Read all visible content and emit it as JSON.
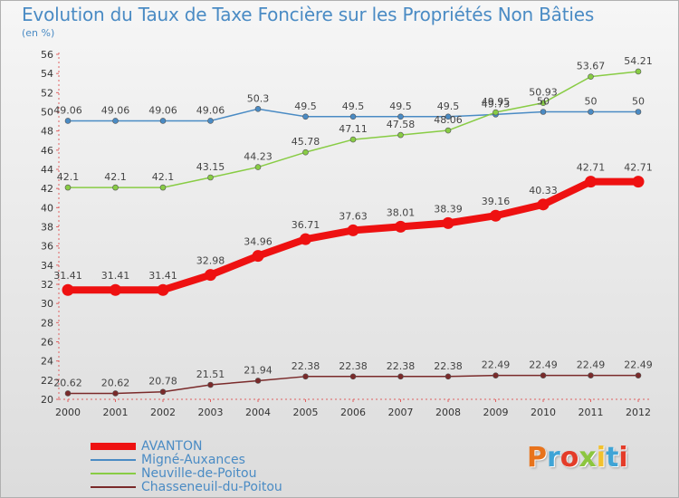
{
  "title": "Evolution du Taux de Taxe Foncière sur les Propriétés Non Bâties",
  "subtitle": "(en %)",
  "logo_text": "Proxiti",
  "logo_colors": [
    "#e8731c",
    "#3fa4d6",
    "#e43c29",
    "#8cc63f",
    "#f2c12e",
    "#3fa4d6",
    "#e43c29"
  ],
  "chart_data": {
    "type": "line",
    "x": [
      "2000",
      "2001",
      "2002",
      "2003",
      "2004",
      "2005",
      "2006",
      "2007",
      "2008",
      "2009",
      "2010",
      "2011",
      "2012"
    ],
    "ylim": [
      20,
      56
    ],
    "yticks": [
      "20",
      "22",
      "24",
      "26",
      "28",
      "30",
      "32",
      "34",
      "36",
      "38",
      "40",
      "42",
      "44",
      "46",
      "48",
      "50",
      "52",
      "54",
      "56"
    ],
    "grid": false,
    "legend_placement": "bottom-left",
    "series": [
      {
        "name": "AVANTON",
        "color": "#ee1111",
        "values": [
          31.41,
          31.41,
          31.41,
          32.98,
          34.96,
          36.71,
          37.63,
          38.01,
          38.39,
          39.16,
          40.33,
          42.71,
          42.71
        ],
        "labels": [
          "31.41",
          "31.41",
          "31.41",
          "32.98",
          "34.96",
          "36.71",
          "37.63",
          "38.01",
          "38.39",
          "39.16",
          "40.33",
          "42.71",
          "42.71"
        ]
      },
      {
        "name": "Migné-Auxances",
        "color": "#4a8bc4",
        "values": [
          49.06,
          49.06,
          49.06,
          49.06,
          50.3,
          49.5,
          49.5,
          49.5,
          49.5,
          49.73,
          50,
          50,
          50
        ],
        "labels": [
          "49.06",
          "49.06",
          "49.06",
          "49.06",
          "50.3",
          "49.5",
          "49.5",
          "49.5",
          "49.5",
          "49.73",
          "50",
          "50",
          "50"
        ]
      },
      {
        "name": "Neuville-de-Poitou",
        "color": "#88cc44",
        "values": [
          42.1,
          42.1,
          42.1,
          43.15,
          44.23,
          45.78,
          47.11,
          47.58,
          48.06,
          49.95,
          50.93,
          53.67,
          54.21
        ],
        "labels": [
          "42.1",
          "42.1",
          "42.1",
          "43.15",
          "44.23",
          "45.78",
          "47.11",
          "47.58",
          "48.06",
          "49.95",
          "50.93",
          "53.67",
          "54.21"
        ]
      },
      {
        "name": "Chasseneuil-du-Poitou",
        "color": "#7a2a2a",
        "values": [
          20.62,
          20.62,
          20.78,
          21.51,
          21.94,
          22.38,
          22.38,
          22.38,
          22.38,
          22.49,
          22.49,
          22.49,
          22.49
        ],
        "labels": [
          "20.62",
          "20.62",
          "20.78",
          "21.51",
          "21.94",
          "22.38",
          "22.38",
          "22.38",
          "22.38",
          "22.49",
          "22.49",
          "22.49",
          "22.49"
        ]
      }
    ]
  }
}
